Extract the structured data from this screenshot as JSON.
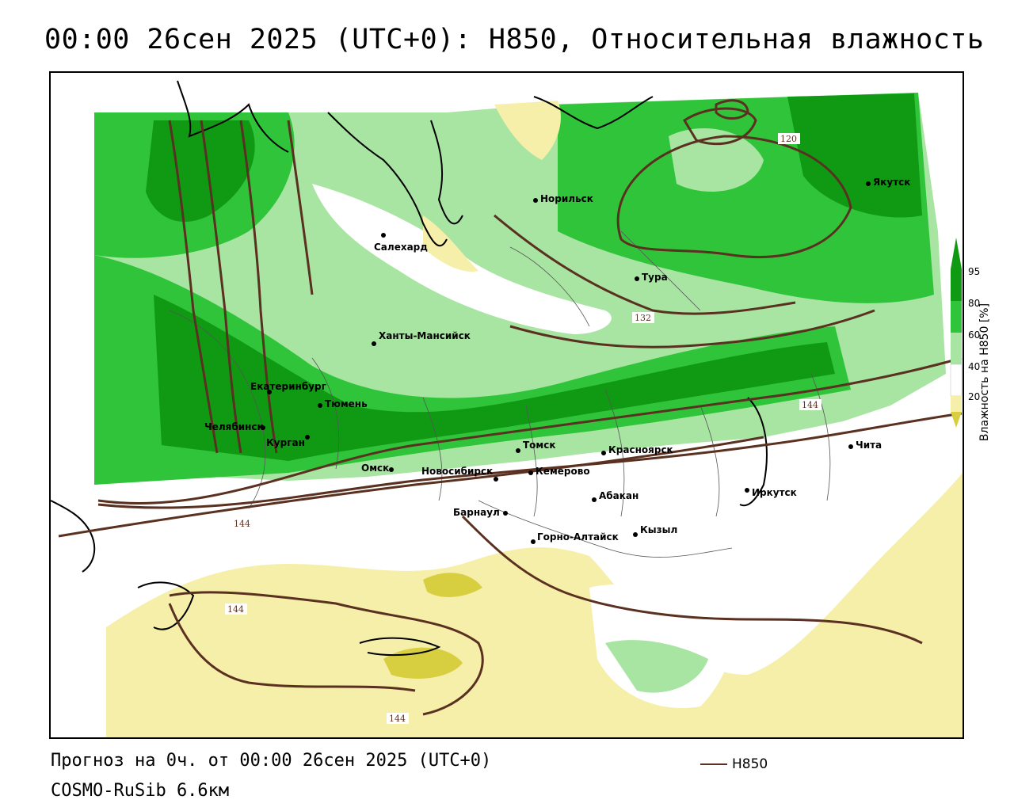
{
  "header": {
    "title": "00:00 26сен 2025 (UTC+0): H850, Относительная влажность"
  },
  "map": {
    "cities": [
      {
        "name": "Норильск"
      },
      {
        "name": "Якутск"
      },
      {
        "name": "Салехард"
      },
      {
        "name": "Тура"
      },
      {
        "name": "Ханты-Мансийск"
      },
      {
        "name": "Екатеринбург"
      },
      {
        "name": "Тюмень"
      },
      {
        "name": "Челябинск"
      },
      {
        "name": "Курган"
      },
      {
        "name": "Омск"
      },
      {
        "name": "Новосибирск"
      },
      {
        "name": "Томск"
      },
      {
        "name": "Кемерово"
      },
      {
        "name": "Красноярск"
      },
      {
        "name": "Барнаул"
      },
      {
        "name": "Абакан"
      },
      {
        "name": "Иркутск"
      },
      {
        "name": "Чита"
      },
      {
        "name": "Горно-Алтайск"
      },
      {
        "name": "Кызыл"
      }
    ],
    "contour_labels": [
      "120",
      "132",
      "144",
      "144",
      "144",
      "144"
    ],
    "colors": {
      "humidity_95": "#109a14",
      "humidity_80": "#2fc43a",
      "humidity_60": "#a8e4a2",
      "humidity_40": "#ffffff",
      "humidity_20": "#f6efaa",
      "humidity_low": "#d8cf40",
      "contour": "#5a3020"
    }
  },
  "legend": {
    "title": "Влажность на H850 [%]",
    "ticks": [
      "95",
      "80",
      "60",
      "40",
      "20"
    ]
  },
  "footer": {
    "forecast": "Прогноз на 0ч. от 00:00 26сен 2025 (UTC+0)",
    "model": "COSMO-RuSib 6.6км",
    "contour_key": "H850"
  }
}
